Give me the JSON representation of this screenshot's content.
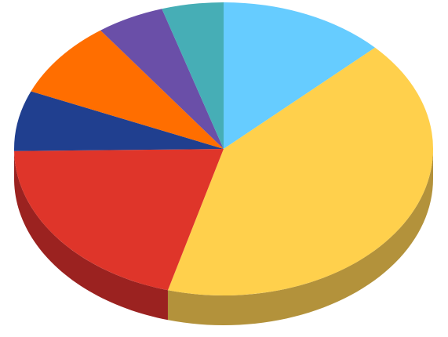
{
  "chart_data": {
    "type": "pie",
    "style": "3d",
    "legend": "none",
    "title": "",
    "start_angle_degrees": 0,
    "direction": "clockwise",
    "slices": [
      {
        "value": 13.5,
        "color": "#66CCFF",
        "side_color": "#4A9ABF"
      },
      {
        "value": 43.5,
        "color": "#FFD04C",
        "side_color": "#B3923B"
      },
      {
        "value": 21.5,
        "color": "#DF352A",
        "side_color": "#9B2220"
      },
      {
        "value": 7.0,
        "color": "#203F8F",
        "side_color": "#162B63"
      },
      {
        "value": 9.0,
        "color": "#FF6E00",
        "side_color": "#B34D00"
      },
      {
        "value": 5.5,
        "color": "#6A4FA8",
        "side_color": "#4A3776"
      },
      {
        "value": 5.0,
        "color": "#46AEB6",
        "side_color": "#317A80"
      }
    ]
  }
}
